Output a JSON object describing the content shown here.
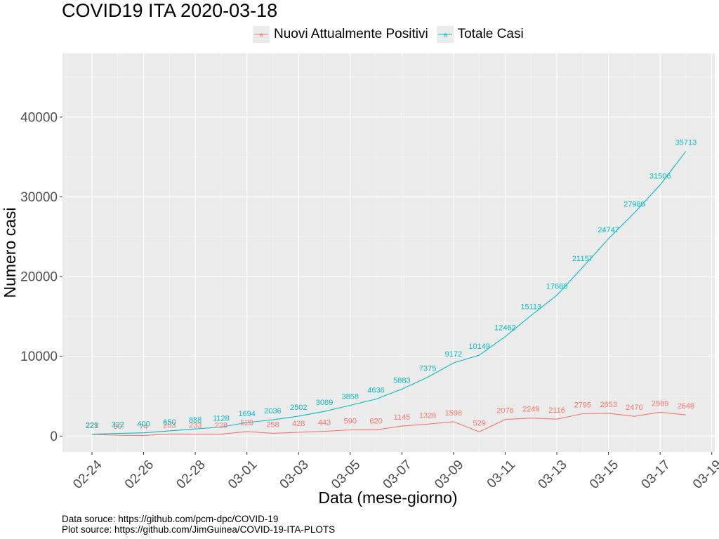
{
  "chart_data": {
    "type": "line",
    "title": "COVID19 ITA 2020-03-18",
    "xlabel": "Data (mese-giorno)",
    "ylabel": "Numero casi",
    "dates": [
      "02-24",
      "02-25",
      "02-26",
      "02-27",
      "02-28",
      "02-29",
      "03-01",
      "03-02",
      "03-03",
      "03-04",
      "03-05",
      "03-06",
      "03-07",
      "03-08",
      "03-09",
      "03-10",
      "03-11",
      "03-12",
      "03-13",
      "03-14",
      "03-15",
      "03-16",
      "03-17",
      "03-18"
    ],
    "x_tick_labels": [
      "02-24",
      "02-26",
      "02-28",
      "03-01",
      "03-03",
      "03-05",
      "03-07",
      "03-09",
      "03-11",
      "03-13",
      "03-15",
      "03-17",
      "03-19"
    ],
    "y_ticks": [
      0,
      10000,
      20000,
      30000,
      40000
    ],
    "y_tick_labels": [
      "0",
      "10000",
      "20000",
      "30000",
      "40000"
    ],
    "ylim": [
      -2000,
      48000
    ],
    "grid": true,
    "legend_position": "top",
    "series": [
      {
        "name": "Nuovi Attualmente Positivi",
        "color": "#F8766D",
        "values": [
          221,
          93,
          78,
          250,
          238,
          240,
          566,
          342,
          466,
          587,
          769,
          778,
          1247,
          1492,
          1797,
          529,
          2076,
          2249,
          2116,
          2795,
          2853,
          2470,
          2989,
          2648
        ],
        "labels": [
          "221",
          "",
          "",
          "",
          "",
          "",
          "",
          "",
          "",
          "",
          "",
          "",
          "",
          "",
          "",
          "529",
          "2076",
          "2249",
          "2116",
          "2795",
          "2853",
          "2470",
          "2989",
          "2648"
        ],
        "gap_labels": [
          {
            "date": "02-25",
            "text": "90"
          },
          {
            "date": "02-26",
            "text": "74"
          },
          {
            "date": "02-27",
            "text": "203"
          },
          {
            "date": "02-28",
            "text": "233"
          },
          {
            "date": "02-29",
            "text": "228"
          },
          {
            "date": "03-01",
            "text": "528"
          },
          {
            "date": "03-02",
            "text": "258"
          },
          {
            "date": "03-03",
            "text": "428"
          },
          {
            "date": "03-04",
            "text": "443"
          },
          {
            "date": "03-05",
            "text": "590"
          },
          {
            "date": "03-06",
            "text": "620"
          },
          {
            "date": "03-07",
            "text": "1145"
          },
          {
            "date": "03-08",
            "text": "1326"
          },
          {
            "date": "03-09",
            "text": "1598"
          }
        ]
      },
      {
        "name": "Totale Casi",
        "color": "#00BFC4",
        "values": [
          229,
          322,
          400,
          650,
          888,
          1128,
          1694,
          2036,
          2502,
          3089,
          3858,
          4636,
          5883,
          7375,
          9172,
          10149,
          12462,
          15113,
          17660,
          21157,
          24747,
          27980,
          31506,
          35713
        ],
        "labels": [
          "229",
          "322",
          "400",
          "650",
          "888",
          "1128",
          "1694",
          "2036",
          "2502",
          "3089",
          "3858",
          "4636",
          "5883",
          "7375",
          "9172",
          "10149",
          "12462",
          "15113",
          "17660",
          "21157",
          "24747",
          "27980",
          "31506",
          "35713"
        ]
      }
    ]
  },
  "captions": {
    "line1": "Data soruce: https://github.com/pcm-dpc/COVID-19",
    "line2": "Plot source: https://github.com/JimGuinea/COVID-19-ITA-PLOTS"
  },
  "colors": {
    "panel_background": "#EBEBEB",
    "grid": "#FFFFFF",
    "axis_text": "#4D4D4D"
  }
}
